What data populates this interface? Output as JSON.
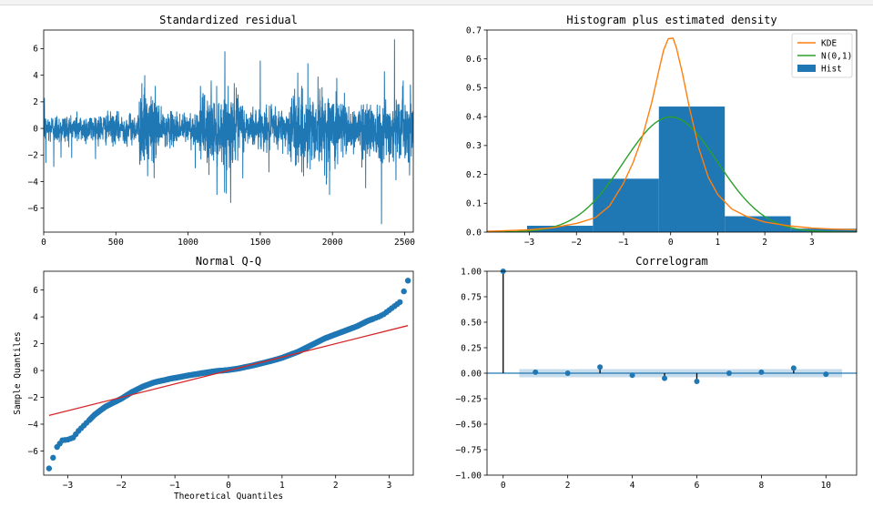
{
  "chart_data": [
    {
      "id": "residual",
      "type": "line",
      "title": "Standardized residual",
      "xlabel": "",
      "ylabel": "",
      "xlim": [
        0,
        2560
      ],
      "ylim": [
        -7.8,
        7.4
      ],
      "xticks": [
        0,
        500,
        1000,
        1500,
        2000,
        2500
      ],
      "yticks": [
        -6,
        -4,
        -2,
        0,
        2,
        4,
        6
      ],
      "n_points": 2560,
      "series_color": "#1f77b4",
      "volatility_regimes": [
        {
          "from": 0,
          "to": 660,
          "sd": 0.55
        },
        {
          "from": 660,
          "to": 800,
          "sd": 1.3
        },
        {
          "from": 800,
          "to": 1080,
          "sd": 0.6
        },
        {
          "from": 1080,
          "to": 1380,
          "sd": 1.25
        },
        {
          "from": 1380,
          "to": 1700,
          "sd": 0.75
        },
        {
          "from": 1700,
          "to": 2100,
          "sd": 1.35
        },
        {
          "from": 2100,
          "to": 2200,
          "sd": 0.8
        },
        {
          "from": 2200,
          "to": 2560,
          "sd": 1.1
        }
      ],
      "spikes": [
        {
          "x": 5,
          "y": 2.3
        },
        {
          "x": 15,
          "y": -2.6
        },
        {
          "x": 70,
          "y": -2.9
        },
        {
          "x": 120,
          "y": -2.2
        },
        {
          "x": 680,
          "y": 3.4
        },
        {
          "x": 700,
          "y": 4.0
        },
        {
          "x": 720,
          "y": -3.6
        },
        {
          "x": 760,
          "y": -2.6
        },
        {
          "x": 1050,
          "y": -3.0
        },
        {
          "x": 1145,
          "y": -3.5
        },
        {
          "x": 1160,
          "y": 3.6
        },
        {
          "x": 1200,
          "y": -5.0
        },
        {
          "x": 1255,
          "y": 5.8
        },
        {
          "x": 1265,
          "y": -4.9
        },
        {
          "x": 1295,
          "y": -5.6
        },
        {
          "x": 1320,
          "y": 3.4
        },
        {
          "x": 1500,
          "y": 5.1
        },
        {
          "x": 1560,
          "y": -3.3
        },
        {
          "x": 1760,
          "y": 4.2
        },
        {
          "x": 1800,
          "y": -3.6
        },
        {
          "x": 1830,
          "y": 4.9
        },
        {
          "x": 1900,
          "y": 3.9
        },
        {
          "x": 1980,
          "y": -5.0
        },
        {
          "x": 2030,
          "y": 3.8
        },
        {
          "x": 2230,
          "y": -4.5
        },
        {
          "x": 2340,
          "y": -7.2
        },
        {
          "x": 2360,
          "y": 4.3
        },
        {
          "x": 2430,
          "y": 6.7
        },
        {
          "x": 2440,
          "y": -3.9
        },
        {
          "x": 2490,
          "y": 3.6
        },
        {
          "x": 2540,
          "y": 3.3
        }
      ]
    },
    {
      "id": "histogram",
      "type": "bar",
      "title": "Histogram plus estimated density",
      "xlim": [
        -3.9,
        3.95
      ],
      "ylim": [
        0,
        0.7
      ],
      "xticks": [
        -3,
        -2,
        -1,
        0,
        1,
        2,
        3
      ],
      "yticks": [
        0.0,
        0.1,
        0.2,
        0.3,
        0.4,
        0.5,
        0.6,
        0.7
      ],
      "bins": [
        {
          "from": -3.05,
          "to": -1.65,
          "height": 0.022
        },
        {
          "from": -1.65,
          "to": -0.25,
          "height": 0.185
        },
        {
          "from": -0.25,
          "to": 1.15,
          "height": 0.435
        },
        {
          "from": 1.15,
          "to": 2.55,
          "height": 0.055
        },
        {
          "from": 2.55,
          "to": 3.95,
          "height": 0.012
        }
      ],
      "kde": {
        "x": [
          -3.9,
          -3.5,
          -3.0,
          -2.5,
          -2.0,
          -1.6,
          -1.3,
          -1.0,
          -0.8,
          -0.6,
          -0.4,
          -0.25,
          -0.15,
          -0.05,
          0.05,
          0.12,
          0.25,
          0.4,
          0.6,
          0.8,
          1.0,
          1.3,
          1.6,
          2.0,
          2.5,
          3.0,
          3.5,
          3.95
        ],
        "y": [
          0.003,
          0.005,
          0.008,
          0.015,
          0.03,
          0.05,
          0.09,
          0.17,
          0.24,
          0.33,
          0.45,
          0.56,
          0.63,
          0.67,
          0.672,
          0.64,
          0.55,
          0.43,
          0.29,
          0.19,
          0.13,
          0.08,
          0.055,
          0.035,
          0.022,
          0.014,
          0.01,
          0.008
        ]
      },
      "normal": {
        "mean": 0,
        "sd": 1
      },
      "legend": [
        {
          "label": "KDE",
          "color": "#ff7f0e",
          "kind": "line"
        },
        {
          "label": "N(0,1)",
          "color": "#2ca02c",
          "kind": "line"
        },
        {
          "label": "Hist",
          "color": "#1f77b4",
          "kind": "patch"
        }
      ],
      "legend_position": "top-right"
    },
    {
      "id": "qq",
      "type": "scatter",
      "title": "Normal Q-Q",
      "xlabel": "Theoretical Quantiles",
      "ylabel": "Sample Quantiles",
      "xlim": [
        -3.45,
        3.45
      ],
      "ylim": [
        -7.8,
        7.4
      ],
      "xticks": [
        -3,
        -2,
        -1,
        0,
        1,
        2,
        3
      ],
      "yticks": [
        -6,
        -4,
        -2,
        0,
        2,
        4,
        6
      ],
      "points": {
        "x": [
          -3.35,
          -3.2,
          -3.1,
          -3.0,
          -2.9,
          -2.8,
          -2.7,
          -2.6,
          -2.5,
          -2.4,
          -2.3,
          -2.2,
          -2.1,
          -2.0,
          -1.9,
          -1.8,
          -1.7,
          -1.6,
          -1.5,
          -1.4,
          -1.3,
          -1.2,
          -1.1,
          -1.0,
          -0.9,
          -0.8,
          -0.7,
          -0.6,
          -0.5,
          -0.4,
          -0.3,
          -0.2,
          -0.1,
          0.0,
          0.1,
          0.2,
          0.3,
          0.4,
          0.5,
          0.6,
          0.7,
          0.8,
          0.9,
          1.0,
          1.1,
          1.2,
          1.3,
          1.4,
          1.5,
          1.6,
          1.7,
          1.8,
          1.9,
          2.0,
          2.1,
          2.2,
          2.3,
          2.4,
          2.5,
          2.6,
          2.7,
          2.8,
          2.9,
          3.0,
          3.1,
          3.2,
          3.35
        ],
        "y": [
          -7.3,
          -5.7,
          -5.2,
          -5.15,
          -5.0,
          -4.5,
          -4.1,
          -3.7,
          -3.3,
          -3.0,
          -2.7,
          -2.5,
          -2.3,
          -2.1,
          -1.85,
          -1.6,
          -1.4,
          -1.2,
          -1.05,
          -0.9,
          -0.8,
          -0.72,
          -0.62,
          -0.55,
          -0.48,
          -0.4,
          -0.33,
          -0.27,
          -0.2,
          -0.14,
          -0.08,
          -0.03,
          0.0,
          0.04,
          0.1,
          0.16,
          0.25,
          0.33,
          0.42,
          0.52,
          0.62,
          0.72,
          0.83,
          0.95,
          1.1,
          1.25,
          1.4,
          1.6,
          1.8,
          2.0,
          2.2,
          2.4,
          2.55,
          2.7,
          2.85,
          3.0,
          3.15,
          3.3,
          3.5,
          3.7,
          3.85,
          4.0,
          4.2,
          4.5,
          4.8,
          5.1,
          6.7
        ]
      },
      "point_color": "#1f77b4",
      "reference_line": {
        "slope": 1.0,
        "intercept": 0.0,
        "color": "#d62728"
      }
    },
    {
      "id": "correlogram",
      "type": "scatter",
      "title": "Correlogram",
      "xlim": [
        -0.5,
        10.95
      ],
      "ylim": [
        -1.0,
        1.0
      ],
      "xticks": [
        0,
        2,
        4,
        6,
        8,
        10
      ],
      "yticks": [
        -1.0,
        -0.75,
        -0.5,
        -0.25,
        0.0,
        0.25,
        0.5,
        0.75,
        1.0
      ],
      "ytick_labels": [
        "−1.00",
        "−0.75",
        "−0.50",
        "−0.25",
        "0.00",
        "0.25",
        "0.50",
        "0.75",
        "1.00"
      ],
      "lags": [
        0,
        1,
        2,
        3,
        4,
        5,
        6,
        7,
        8,
        9,
        10
      ],
      "acf": [
        1.0,
        0.01,
        0.0,
        0.06,
        -0.02,
        -0.05,
        -0.08,
        0.0,
        0.01,
        0.05,
        -0.01
      ],
      "confidence_band": {
        "from_lag": 0.5,
        "to_lag": 10.5,
        "upper": 0.04,
        "lower": -0.04
      },
      "color": "#1f77b4"
    }
  ]
}
